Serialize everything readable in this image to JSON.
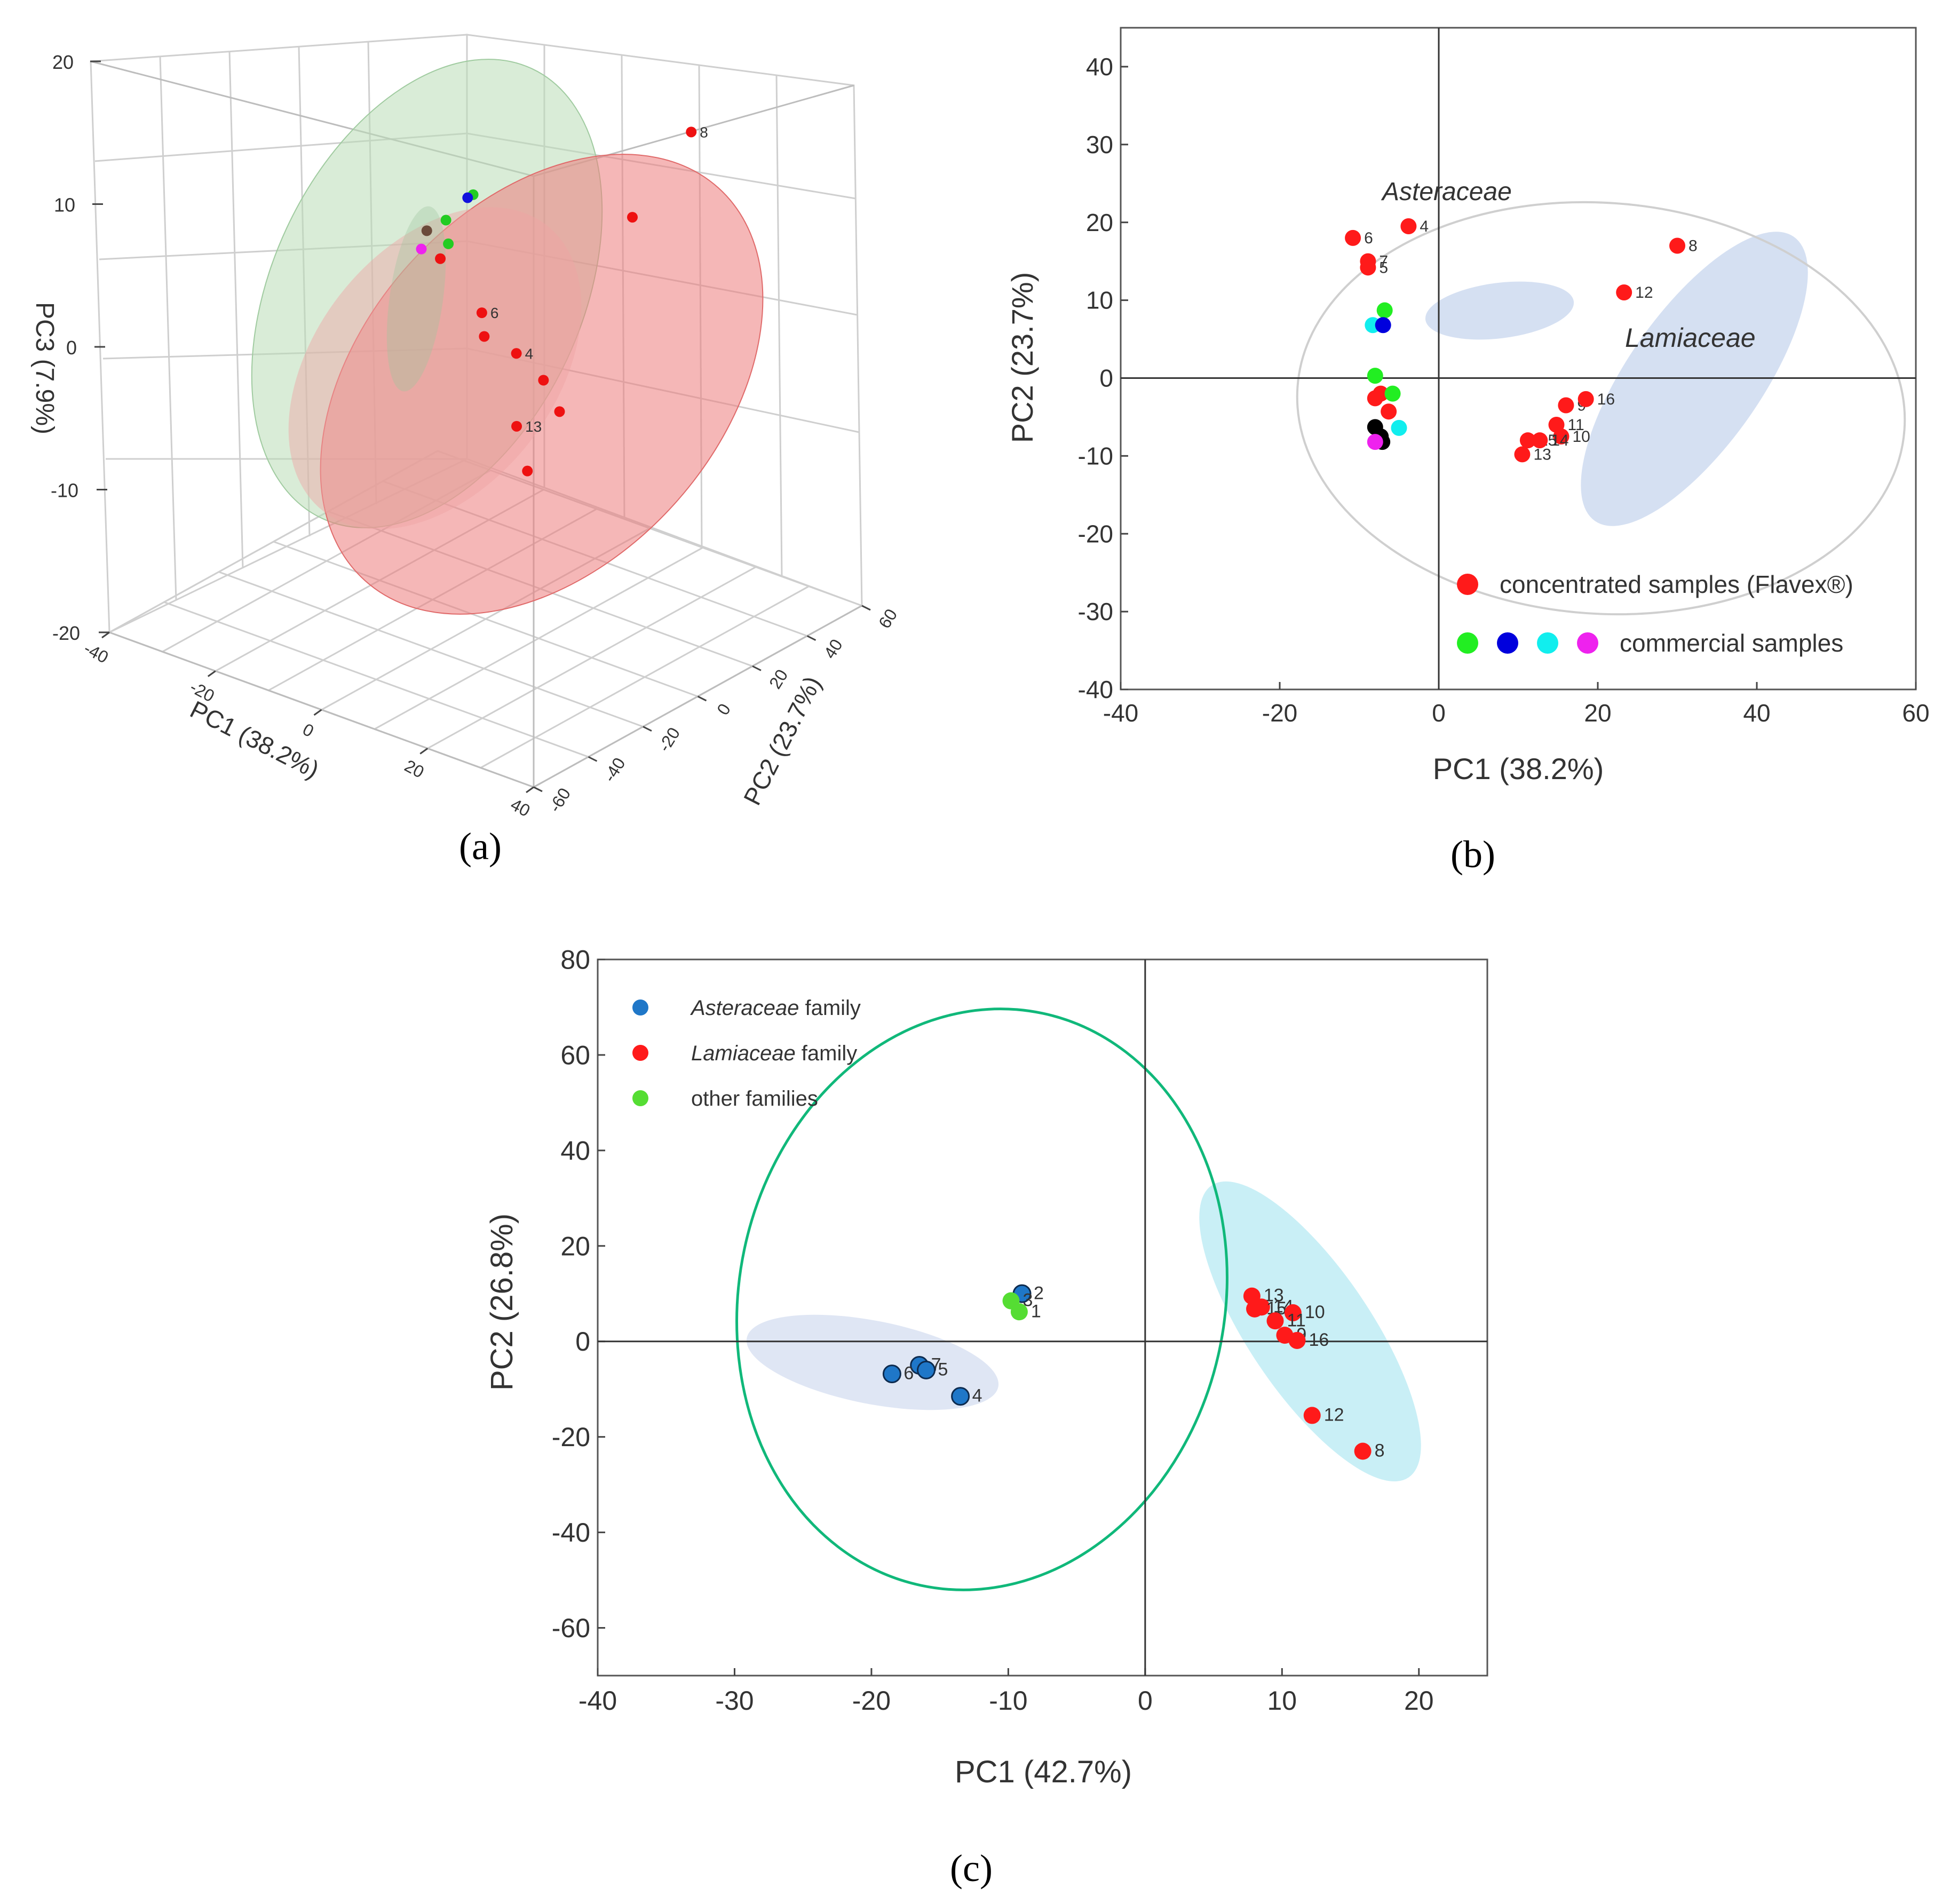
{
  "panels": {
    "a": {
      "caption": "(a)"
    },
    "b": {
      "caption": "(b)"
    },
    "c": {
      "caption": "(c)"
    }
  },
  "chart_data": [
    {
      "id": "a",
      "type": "scatter",
      "title": "",
      "xlabel": "PC1 (38.2%)",
      "ylabel": "PC2 (23.7%)",
      "zlabel": "PC3 (7.9%)",
      "xlim": [
        -40,
        40
      ],
      "ylim": [
        -60,
        60
      ],
      "zlim": [
        -20,
        20
      ],
      "xticks": [
        "-40",
        "-20",
        "0",
        "20",
        "40"
      ],
      "yticks": [
        "-60",
        "-40",
        "-20",
        "0",
        "20",
        "40",
        "60"
      ],
      "zticks": [
        "-20",
        "-10",
        "0",
        "10",
        "20"
      ],
      "points": [
        {
          "label": "8",
          "x": 30,
          "y": 17,
          "z": 14,
          "color": "#ee1111"
        },
        {
          "label": "6",
          "x": -10,
          "y": 18,
          "z": -3,
          "color": "#ee1111"
        },
        {
          "label": "4",
          "x": -4,
          "y": 19,
          "z": -5,
          "color": "#ee1111"
        },
        {
          "label": "13",
          "x": 11,
          "y": -10,
          "z": -5,
          "color": "#ee1111"
        },
        {
          "label": "",
          "x": 22,
          "y": 11,
          "z": 8,
          "color": "#ee1111"
        },
        {
          "label": "",
          "x": 14,
          "y": -6,
          "z": -2,
          "color": "#ee1111"
        },
        {
          "label": "",
          "x": 16,
          "y": -4,
          "z": -4,
          "color": "#ee1111"
        },
        {
          "label": "",
          "x": 12,
          "y": -8,
          "z": -8,
          "color": "#ee1111"
        },
        {
          "label": "",
          "x": -7,
          "y": -3,
          "z": 3,
          "color": "#ee1111"
        },
        {
          "label": "",
          "x": -8,
          "y": 15,
          "z": -4,
          "color": "#ee1111"
        },
        {
          "label": "",
          "x": -8,
          "y": 1,
          "z": 5,
          "color": "#22cc22"
        },
        {
          "label": "",
          "x": -6,
          "y": -2,
          "z": 4,
          "color": "#22cc22"
        },
        {
          "label": "",
          "x": -7,
          "y": 9,
          "z": 6,
          "color": "#22cc22"
        },
        {
          "label": "",
          "x": -7,
          "y": 7,
          "z": 6,
          "color": "#1111dd"
        },
        {
          "label": "",
          "x": -8,
          "y": -6,
          "z": 5,
          "color": "#6b4a3a"
        },
        {
          "label": "",
          "x": -8,
          "y": -8,
          "z": 4,
          "color": "#ee22ee"
        }
      ]
    },
    {
      "id": "b",
      "type": "scatter",
      "title": "",
      "xlabel": "PC1 (38.2%)",
      "ylabel": "PC2 (23.7%)",
      "xlim": [
        -40,
        60
      ],
      "ylim": [
        -40,
        45
      ],
      "xticks": [
        -40,
        -20,
        0,
        20,
        40,
        60
      ],
      "yticks": [
        -40,
        -30,
        -20,
        -10,
        0,
        10,
        20,
        30,
        40
      ],
      "annotations": [
        "Asteraceae",
        "Lamiaceae"
      ],
      "legend": [
        {
          "label": "concentrated samples (Flavex®)",
          "colors": [
            "#ff1a1a"
          ]
        },
        {
          "label": "commercial samples",
          "colors": [
            "#22ee22",
            "#0000dd",
            "#11eeee",
            "#ee22ee"
          ]
        }
      ],
      "points": [
        {
          "label": "8",
          "x": 30,
          "y": 17,
          "color": "#ff1a1a"
        },
        {
          "label": "12",
          "x": 23.3,
          "y": 11,
          "color": "#ff1a1a"
        },
        {
          "label": "4",
          "x": -3.8,
          "y": 19.5,
          "color": "#ff1a1a"
        },
        {
          "label": "6",
          "x": -10.8,
          "y": 18,
          "color": "#ff1a1a"
        },
        {
          "label": "7",
          "x": -8.9,
          "y": 15,
          "color": "#ff1a1a"
        },
        {
          "label": "5",
          "x": -8.9,
          "y": 14.2,
          "color": "#ff1a1a"
        },
        {
          "label": "9",
          "x": 16,
          "y": -3.5,
          "color": "#ff1a1a"
        },
        {
          "label": "16",
          "x": 18.5,
          "y": -2.7,
          "color": "#ff1a1a"
        },
        {
          "label": "11",
          "x": 14.8,
          "y": -6,
          "color": "#ff1a1a"
        },
        {
          "label": "10",
          "x": 15.4,
          "y": -7.5,
          "color": "#ff1a1a"
        },
        {
          "label": "15",
          "x": 11.2,
          "y": -8,
          "color": "#ff1a1a"
        },
        {
          "label": "14",
          "x": 12.7,
          "y": -8,
          "color": "#ff1a1a"
        },
        {
          "label": "13",
          "x": 10.5,
          "y": -9.8,
          "color": "#ff1a1a"
        },
        {
          "label": "",
          "x": -8,
          "y": -2.6,
          "color": "#ff1a1a"
        },
        {
          "label": "",
          "x": -6.3,
          "y": -4.3,
          "color": "#ff1a1a"
        },
        {
          "label": "",
          "x": -7.3,
          "y": -2,
          "color": "#ff1a1a"
        },
        {
          "label": "",
          "x": -6.8,
          "y": 8.7,
          "color": "#22ee22"
        },
        {
          "label": "",
          "x": -8,
          "y": 0.3,
          "color": "#22ee22"
        },
        {
          "label": "",
          "x": -5.8,
          "y": -2,
          "color": "#22ee22"
        },
        {
          "label": "",
          "x": -8.3,
          "y": 6.8,
          "color": "#11eeee"
        },
        {
          "label": "",
          "x": -5,
          "y": -6.4,
          "color": "#11eeee"
        },
        {
          "label": "",
          "x": -7,
          "y": 6.8,
          "color": "#0000dd"
        },
        {
          "label": "",
          "x": -8,
          "y": -6.3,
          "color": "#000000"
        },
        {
          "label": "",
          "x": -7.3,
          "y": -7.5,
          "color": "#000000"
        },
        {
          "label": "",
          "x": -7.1,
          "y": -8.2,
          "color": "#000000"
        },
        {
          "label": "",
          "x": -8,
          "y": -8.2,
          "color": "#ee22ee"
        }
      ]
    },
    {
      "id": "c",
      "type": "scatter",
      "title": "",
      "xlabel": "PC1 (42.7%)",
      "ylabel": "PC2 (26.8%)",
      "xlim": [
        -40,
        25
      ],
      "ylim": [
        -70,
        80
      ],
      "xticks": [
        -40,
        -30,
        -20,
        -10,
        0,
        10,
        20
      ],
      "yticks": [
        -60,
        -40,
        -20,
        0,
        20,
        40,
        60,
        80
      ],
      "legend": [
        {
          "label": "Asteraceae",
          "suffix": " family",
          "italic": true,
          "color": "#1f77c8"
        },
        {
          "label": "Lamiaceae",
          "suffix": " family",
          "italic": true,
          "color": "#ff1a1a"
        },
        {
          "label": "other  families",
          "suffix": "",
          "italic": false,
          "color": "#55dd33"
        }
      ],
      "points": [
        {
          "label": "2",
          "x": -9,
          "y": 10,
          "color": "#1f77c8"
        },
        {
          "label": "3",
          "x": -9.8,
          "y": 8.5,
          "color": "#55dd33"
        },
        {
          "label": "1",
          "x": -9.2,
          "y": 6.2,
          "color": "#55dd33"
        },
        {
          "label": "7",
          "x": -16.5,
          "y": -5,
          "color": "#1f77c8"
        },
        {
          "label": "5",
          "x": -16,
          "y": -6,
          "color": "#1f77c8"
        },
        {
          "label": "6",
          "x": -18.5,
          "y": -6.8,
          "color": "#1f77c8"
        },
        {
          "label": "4",
          "x": -13.5,
          "y": -11.5,
          "color": "#1f77c8"
        },
        {
          "label": "13",
          "x": 7.8,
          "y": 9.5,
          "color": "#ff1a1a"
        },
        {
          "label": "14",
          "x": 8.5,
          "y": 7.2,
          "color": "#ff1a1a"
        },
        {
          "label": "15",
          "x": 8,
          "y": 6.8,
          "color": "#ff1a1a"
        },
        {
          "label": "10",
          "x": 10.8,
          "y": 6,
          "color": "#ff1a1a"
        },
        {
          "label": "11",
          "x": 9.5,
          "y": 4.3,
          "color": "#ff1a1a"
        },
        {
          "label": "9",
          "x": 10.2,
          "y": 1.3,
          "color": "#ff1a1a"
        },
        {
          "label": "16",
          "x": 11.1,
          "y": 0.2,
          "color": "#ff1a1a"
        },
        {
          "label": "12",
          "x": 12.2,
          "y": -15.5,
          "color": "#ff1a1a"
        },
        {
          "label": "8",
          "x": 15.9,
          "y": -23,
          "color": "#ff1a1a"
        }
      ]
    }
  ]
}
